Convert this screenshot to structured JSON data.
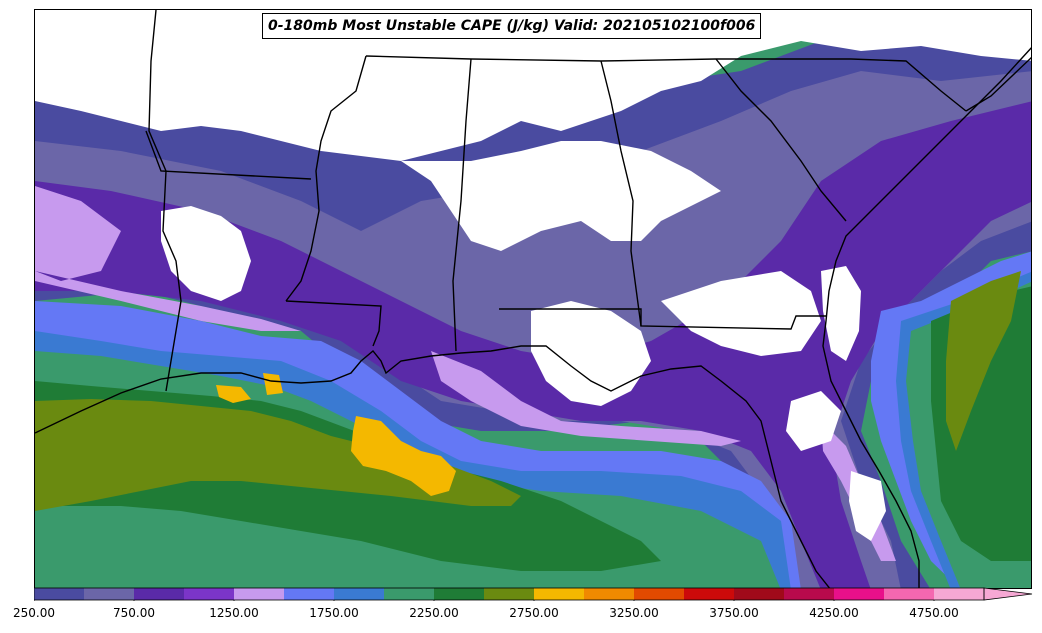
{
  "title": "0-180mb Most Unstable CAPE (J/kg) Valid: 202105102100f006",
  "colorbar": {
    "levels": [
      250,
      500,
      750,
      1000,
      1250,
      1500,
      1750,
      2000,
      2250,
      2500,
      2750,
      3000,
      3250,
      3500,
      3750,
      4000,
      4250,
      4500,
      4750,
      5000
    ],
    "colors": [
      "#4a4ba0",
      "#6b66a8",
      "#5a2aa8",
      "#7b35c8",
      "#c79aee",
      "#6478f5",
      "#3a7ad2",
      "#3a9a6c",
      "#1f7c36",
      "#6a8a10",
      "#f4b800",
      "#f08a00",
      "#e24a00",
      "#cc0a0a",
      "#a00a1a",
      "#b80a4c",
      "#e8108a",
      "#f467b0",
      "#f6a8d4"
    ],
    "tick_labels": [
      "250.00",
      "750.00",
      "1250.00",
      "1750.00",
      "2250.00",
      "2750.00",
      "3250.00",
      "3750.00",
      "4250.00",
      "4750.00"
    ],
    "extend": "max"
  },
  "map": {
    "region": "Southeastern United States and northern Gulf of Mexico",
    "field_colors": {
      "none": "#ffffff",
      "c250": "#4a4ba0",
      "c500": "#6b66a8",
      "c750": "#5a2aa8",
      "c1000": "#7b35c8",
      "c1250": "#c79aee",
      "c1500": "#6478f5",
      "c1750": "#3a7ad2",
      "c2000": "#3a9a6c",
      "c2250": "#1f7c36",
      "c2500": "#6a8a10",
      "c2750": "#f4b800"
    }
  }
}
